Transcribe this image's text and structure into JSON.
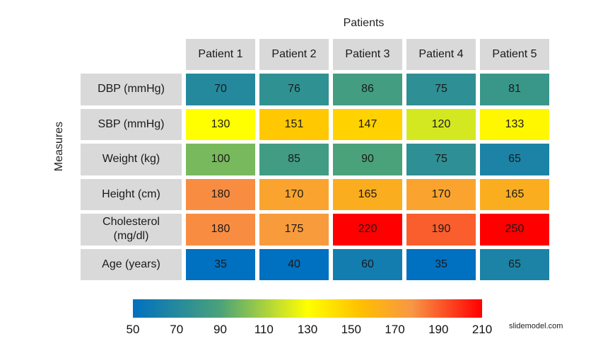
{
  "chart_data": {
    "type": "heatmap",
    "title": "Patients",
    "ylabel": "Measures",
    "columns": [
      "Patient 1",
      "Patient 2",
      "Patient 3",
      "Patient 4",
      "Patient 5"
    ],
    "rows": [
      {
        "label": "DBP (mmHg)",
        "values": [
          70,
          76,
          86,
          75,
          81
        ]
      },
      {
        "label": "SBP (mmHg)",
        "values": [
          130,
          151,
          147,
          120,
          133
        ]
      },
      {
        "label": "Weight (kg)",
        "values": [
          100,
          85,
          90,
          75,
          65
        ]
      },
      {
        "label": "Height (cm)",
        "values": [
          180,
          170,
          165,
          170,
          165
        ]
      },
      {
        "label": "Cholesterol (mg/dl)",
        "values": [
          180,
          175,
          220,
          190,
          250
        ]
      },
      {
        "label": "Age (years)",
        "values": [
          35,
          40,
          60,
          35,
          65
        ]
      }
    ],
    "colorbar": {
      "range": [
        50,
        210
      ],
      "ticks": [
        50,
        70,
        90,
        110,
        130,
        150,
        170,
        190,
        210
      ],
      "colors": [
        "#0070c0",
        "#4aa27a",
        "#c8e12a",
        "#ffff00",
        "#ffc000",
        "#f79646",
        "#ff0000"
      ]
    }
  },
  "credit": "slidemodel.com"
}
